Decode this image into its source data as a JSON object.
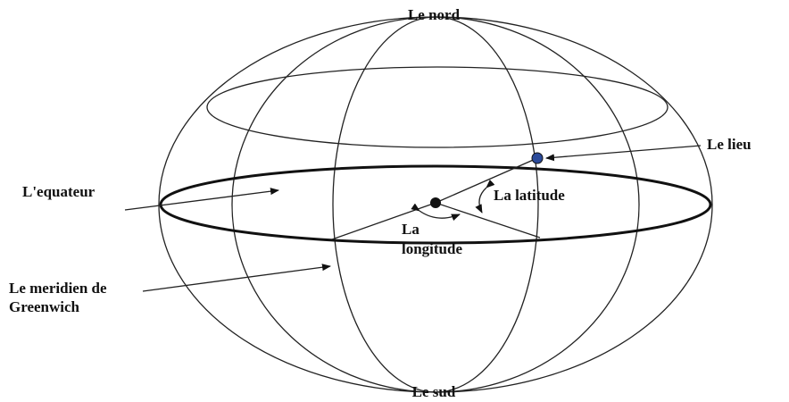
{
  "labels": {
    "north": "Le nord",
    "place": "Le lieu",
    "equator": "L'equateur",
    "latitude": "La latitude",
    "longitude": [
      "La",
      "longitude"
    ],
    "meridian": [
      "Le meridien de",
      "Greenwich"
    ],
    "south": "Le sud"
  }
}
